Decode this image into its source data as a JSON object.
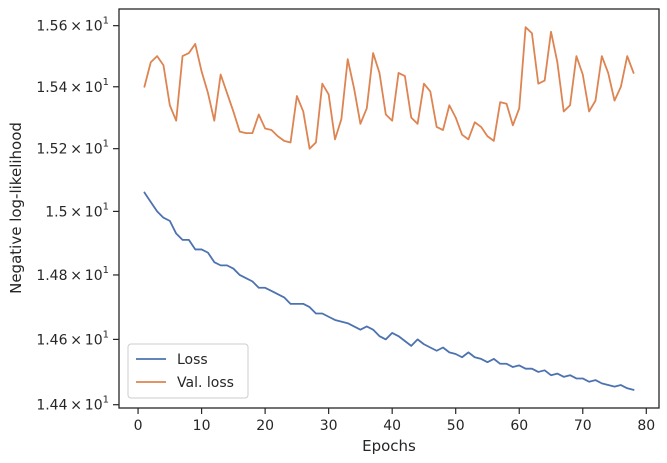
{
  "chart_data": {
    "type": "line",
    "title": "",
    "xlabel": "Epochs",
    "ylabel": "Negative log-likelihood",
    "xlim": [
      -3,
      82
    ],
    "ylim": [
      14.39,
      15.655
    ],
    "yscale": "log",
    "grid": false,
    "legend_position": "bottom-left",
    "x_ticks": [
      {
        "value": 0,
        "label": "0"
      },
      {
        "value": 10,
        "label": "10"
      },
      {
        "value": 20,
        "label": "20"
      },
      {
        "value": 30,
        "label": "30"
      },
      {
        "value": 40,
        "label": "40"
      },
      {
        "value": 50,
        "label": "50"
      },
      {
        "value": 60,
        "label": "60"
      },
      {
        "value": 70,
        "label": "70"
      },
      {
        "value": 80,
        "label": "80"
      }
    ],
    "y_ticks": [
      {
        "value": 14.4,
        "mantissa": "1.44",
        "base": "10",
        "exp": "1"
      },
      {
        "value": 14.6,
        "mantissa": "1.46",
        "base": "10",
        "exp": "1"
      },
      {
        "value": 14.8,
        "mantissa": "1.48",
        "base": "10",
        "exp": "1"
      },
      {
        "value": 15.0,
        "mantissa": "1.5",
        "base": "10",
        "exp": "1"
      },
      {
        "value": 15.2,
        "mantissa": "1.52",
        "base": "10",
        "exp": "1"
      },
      {
        "value": 15.4,
        "mantissa": "1.54",
        "base": "10",
        "exp": "1"
      },
      {
        "value": 15.6,
        "mantissa": "1.56",
        "base": "10",
        "exp": "1"
      }
    ],
    "x": [
      1,
      2,
      3,
      4,
      5,
      6,
      7,
      8,
      9,
      10,
      11,
      12,
      13,
      14,
      15,
      16,
      17,
      18,
      19,
      20,
      21,
      22,
      23,
      24,
      25,
      26,
      27,
      28,
      29,
      30,
      31,
      32,
      33,
      34,
      35,
      36,
      37,
      38,
      39,
      40,
      41,
      42,
      43,
      44,
      45,
      46,
      47,
      48,
      49,
      50,
      51,
      52,
      53,
      54,
      55,
      56,
      57,
      58,
      59,
      60,
      61,
      62,
      63,
      64,
      65,
      66,
      67,
      68,
      69,
      70,
      71,
      72,
      73,
      74,
      75,
      76,
      77,
      78
    ],
    "series": [
      {
        "name": "Loss",
        "color": "#4c72b0",
        "values": [
          15.06,
          15.03,
          15.0,
          14.98,
          14.97,
          14.93,
          14.91,
          14.91,
          14.88,
          14.88,
          14.87,
          14.84,
          14.83,
          14.83,
          14.82,
          14.8,
          14.79,
          14.78,
          14.76,
          14.76,
          14.75,
          14.74,
          14.73,
          14.71,
          14.71,
          14.71,
          14.7,
          14.68,
          14.68,
          14.67,
          14.66,
          14.655,
          14.65,
          14.64,
          14.63,
          14.64,
          14.63,
          14.61,
          14.6,
          14.62,
          14.61,
          14.595,
          14.58,
          14.6,
          14.585,
          14.575,
          14.565,
          14.575,
          14.56,
          14.555,
          14.545,
          14.56,
          14.545,
          14.54,
          14.53,
          14.54,
          14.525,
          14.525,
          14.515,
          14.52,
          14.51,
          14.51,
          14.5,
          14.505,
          14.49,
          14.495,
          14.485,
          14.49,
          14.48,
          14.48,
          14.47,
          14.475,
          14.465,
          14.46,
          14.455,
          14.46,
          14.45,
          14.445
        ]
      },
      {
        "name": "Val. loss",
        "color": "#dd8452",
        "values": [
          15.4,
          15.48,
          15.5,
          15.47,
          15.34,
          15.29,
          15.5,
          15.51,
          15.54,
          15.45,
          15.38,
          15.29,
          15.44,
          15.38,
          15.32,
          15.255,
          15.25,
          15.25,
          15.31,
          15.265,
          15.26,
          15.24,
          15.225,
          15.22,
          15.37,
          15.32,
          15.2,
          15.22,
          15.41,
          15.375,
          15.23,
          15.295,
          15.49,
          15.395,
          15.28,
          15.33,
          15.51,
          15.445,
          15.31,
          15.29,
          15.445,
          15.435,
          15.3,
          15.28,
          15.41,
          15.385,
          15.27,
          15.26,
          15.34,
          15.3,
          15.245,
          15.23,
          15.285,
          15.27,
          15.24,
          15.225,
          15.35,
          15.345,
          15.275,
          15.33,
          15.595,
          15.575,
          15.41,
          15.42,
          15.58,
          15.48,
          15.32,
          15.34,
          15.5,
          15.44,
          15.32,
          15.355,
          15.5,
          15.445,
          15.355,
          15.4,
          15.5,
          15.445
        ]
      }
    ]
  }
}
